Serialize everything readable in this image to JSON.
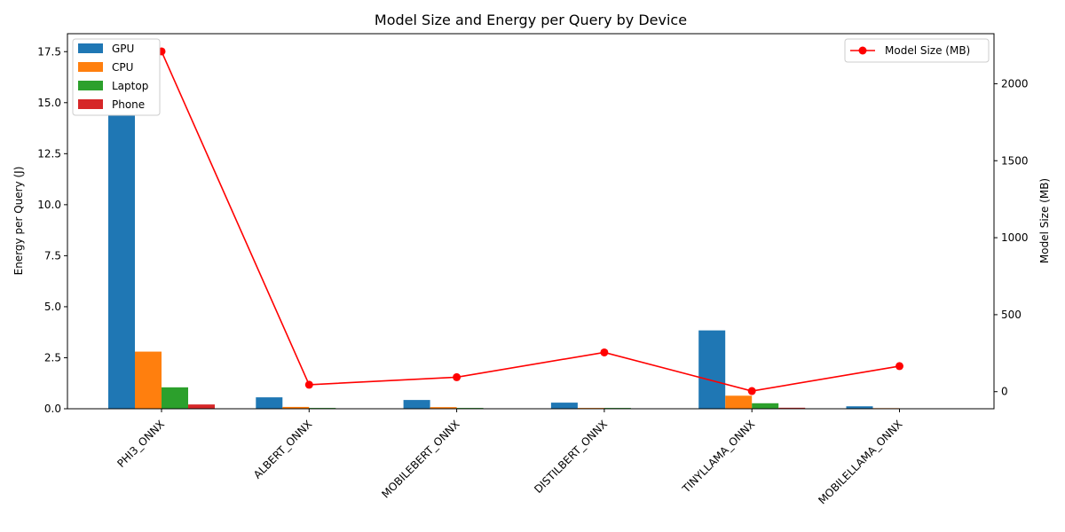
{
  "chart_data": {
    "type": "bar",
    "title": "Model Size and Energy per Query by Device",
    "ylabel": "Energy per Query (J)",
    "y2label": "Model Size (MB)",
    "categories": [
      "PHI3_ONNX",
      "ALBERT_ONNX",
      "MOBILEBERT_ONNX",
      "DISTILBERT_ONNX",
      "TINYLLAMA_ONNX",
      "MOBILELLAMA_ONNX"
    ],
    "series": [
      {
        "name": "GPU",
        "color": "#1f77b4",
        "values": [
          17.5,
          0.56,
          0.43,
          0.3,
          3.84,
          0.12
        ]
      },
      {
        "name": "CPU",
        "color": "#ff7f0e",
        "values": [
          2.8,
          0.09,
          0.08,
          0.04,
          0.64,
          0.03
        ]
      },
      {
        "name": "Laptop",
        "color": "#2ca02c",
        "values": [
          1.05,
          0.04,
          0.04,
          0.04,
          0.27,
          0.01
        ]
      },
      {
        "name": "Phone",
        "color": "#d62728",
        "values": [
          0.21,
          0.0,
          0.0,
          0.0,
          0.05,
          0.0
        ]
      }
    ],
    "line_series": {
      "name": "Model Size (MB)",
      "color": "red",
      "values": [
        2210,
        45,
        94,
        255,
        4,
        166
      ]
    },
    "ylim": [
      0,
      18.38
    ],
    "y2lim": [
      -111,
      2325
    ],
    "yticks": [
      "0.0",
      "2.5",
      "5.0",
      "7.5",
      "10.0",
      "12.5",
      "15.0",
      "17.5"
    ],
    "ytick_values": [
      0,
      2.5,
      5,
      7.5,
      10,
      12.5,
      15,
      17.5
    ],
    "y2ticks": [
      "0",
      "500",
      "1000",
      "1500",
      "2000"
    ],
    "y2tick_values": [
      0,
      500,
      1000,
      1500,
      2000
    ],
    "legend_bars_placement": "upper-left",
    "legend_line_placement": "upper-right",
    "grid": false
  }
}
